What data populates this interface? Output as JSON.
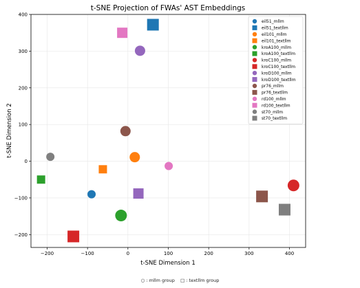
{
  "chart_data": {
    "type": "scatter",
    "title": "t-SNE Projection of FWAs' AST Embeddings",
    "xlabel": "t-SNE Dimension 1",
    "ylabel": "t-SNE Dimension 2",
    "xlim": [
      -240,
      440
    ],
    "ylim": [
      -235,
      400
    ],
    "xticks": [
      -200,
      -100,
      0,
      100,
      200,
      300,
      400
    ],
    "yticks": [
      -200,
      -100,
      0,
      100,
      200,
      300,
      400
    ],
    "grid": true,
    "legend_position": "top-right",
    "series": [
      {
        "name": "eil51_mllm",
        "marker": "circle",
        "size": "small",
        "color": "#1f77b4",
        "x": -90,
        "y": -90
      },
      {
        "name": "eil51_textllm",
        "marker": "square",
        "size": "large",
        "color": "#1f77b4",
        "x": 62,
        "y": 372
      },
      {
        "name": "eil101_mllm",
        "marker": "circle",
        "size": "medium",
        "color": "#ff7f0e",
        "x": 17,
        "y": 11
      },
      {
        "name": "eil101_textllm",
        "marker": "square",
        "size": "small",
        "color": "#ff7f0e",
        "x": -62,
        "y": -22
      },
      {
        "name": "kroA100_mllm",
        "marker": "circle",
        "size": "large",
        "color": "#2ca02c",
        "x": -17,
        "y": -148
      },
      {
        "name": "kroA100_textllm",
        "marker": "square",
        "size": "small",
        "color": "#2ca02c",
        "x": -215,
        "y": -50
      },
      {
        "name": "kroC100_mllm",
        "marker": "circle",
        "size": "large",
        "color": "#d62728",
        "x": 410,
        "y": -66
      },
      {
        "name": "kroC100_textllm",
        "marker": "square",
        "size": "large",
        "color": "#d62728",
        "x": -135,
        "y": -205
      },
      {
        "name": "kroD100_mllm",
        "marker": "circle",
        "size": "medium",
        "color": "#9467bd",
        "x": 30,
        "y": 301
      },
      {
        "name": "kroD100_textllm",
        "marker": "square",
        "size": "medium",
        "color": "#9467bd",
        "x": 26,
        "y": -88
      },
      {
        "name": "pr76_mllm",
        "marker": "circle",
        "size": "medium",
        "color": "#8c564b",
        "x": -6,
        "y": 82
      },
      {
        "name": "pr76_textllm",
        "marker": "square",
        "size": "large",
        "color": "#8c564b",
        "x": 332,
        "y": -96
      },
      {
        "name": "rd100_mllm",
        "marker": "circle",
        "size": "small",
        "color": "#e377c2",
        "x": 101,
        "y": -13
      },
      {
        "name": "rd100_textllm",
        "marker": "square",
        "size": "medium",
        "color": "#e377c2",
        "x": -14,
        "y": 350
      },
      {
        "name": "st70_mllm",
        "marker": "circle",
        "size": "small",
        "color": "#7f7f7f",
        "x": -192,
        "y": 12
      },
      {
        "name": "st70_textllm",
        "marker": "square",
        "size": "large",
        "color": "#7f7f7f",
        "x": 388,
        "y": -132
      }
    ]
  },
  "footnote": {
    "circle_symbol": "○",
    "circle_text": ": mllm group",
    "square_symbol": "□",
    "square_text": ": textllm group"
  }
}
